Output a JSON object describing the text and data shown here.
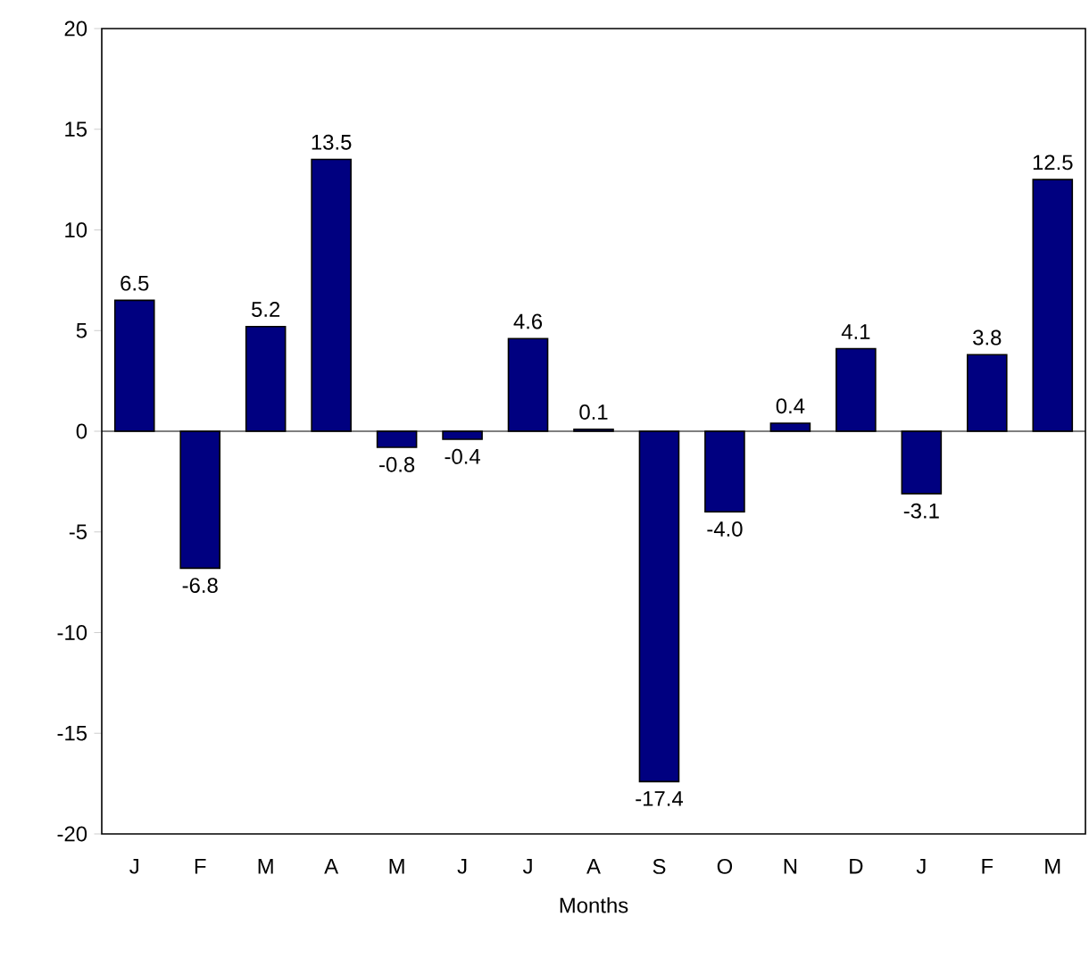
{
  "chart_data": {
    "type": "bar",
    "xlabel": "Months",
    "categories": [
      "J",
      "F",
      "M",
      "A",
      "M",
      "J",
      "J",
      "A",
      "S",
      "O",
      "N",
      "D",
      "J",
      "F",
      "M"
    ],
    "values": [
      6.5,
      -6.8,
      5.2,
      13.5,
      -0.8,
      -0.4,
      4.6,
      0.1,
      -17.4,
      -4.0,
      0.4,
      4.1,
      -3.1,
      3.8,
      12.5
    ],
    "value_labels": [
      "6.5",
      "-6.8",
      "5.2",
      "13.5",
      "-0.8",
      "-0.4",
      "4.6",
      "0.1",
      "-17.4",
      "-4.0",
      "0.4",
      "4.1",
      "-3.1",
      "3.8",
      "12.5"
    ],
    "color": "#000080",
    "ylim": [
      -20,
      20
    ],
    "yticks": [
      -20,
      -15,
      -10,
      -5,
      0,
      5,
      10,
      15,
      20
    ],
    "ref_lines": [
      {
        "axis": "y",
        "value": 0
      }
    ]
  }
}
